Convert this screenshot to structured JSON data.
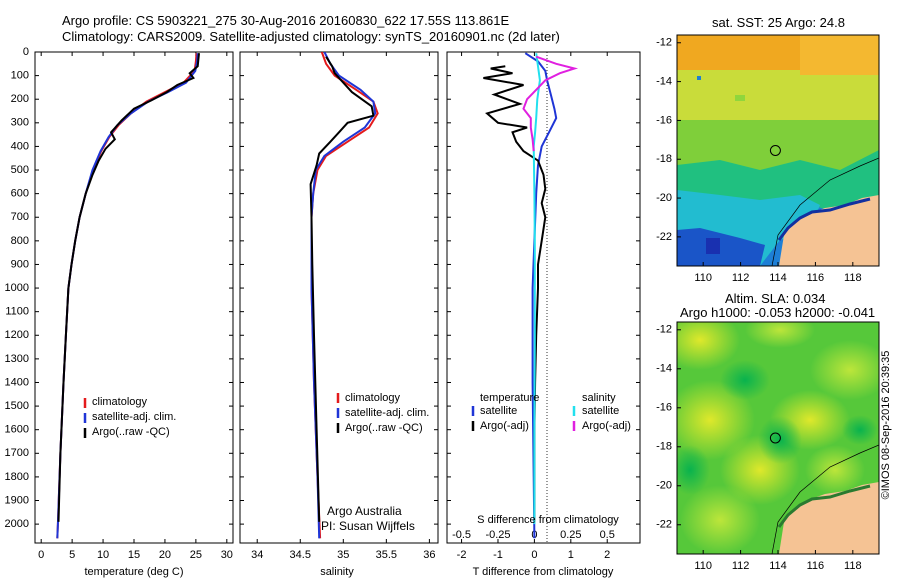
{
  "header": {
    "line1": "Argo profile: CS 5903221_275 30-Aug-2016 20160830_622 17.55S 113.861E",
    "line2": "Climatology: CARS2009. Satellite-adjusted climatology: synTS_20160901.nc (2d later)"
  },
  "watermark": "©IMOS 08-Sep-2016 20:39:35",
  "colors": {
    "climatology": "#e41a1c",
    "satellite": "#1f35d6",
    "argo": "#000000",
    "satellite_s": "#22e0ee",
    "argo_s": "#e020e0"
  },
  "chart_data": [
    {
      "type": "line",
      "xlabel": "temperature (deg C)",
      "ylabel": "",
      "xlim": [
        -1,
        31
      ],
      "ylim": [
        2080,
        0
      ],
      "xticks": [
        "0",
        "5",
        "10",
        "15",
        "20",
        "25",
        "30"
      ],
      "yticks": [
        "0",
        "100",
        "200",
        "300",
        "400",
        "500",
        "600",
        "700",
        "800",
        "900",
        "1000",
        "1100",
        "1200",
        "1300",
        "1400",
        "1500",
        "1600",
        "1700",
        "1800",
        "1900",
        "2000"
      ],
      "legend": [
        "climatology",
        "satellite-adj. clim.",
        "Argo(..raw -QC)"
      ],
      "series": [
        {
          "name": "climatology",
          "color": "#e41a1c",
          "points": [
            [
              25.1,
              5
            ],
            [
              25,
              40
            ],
            [
              24.8,
              80
            ],
            [
              23,
              130
            ],
            [
              20,
              170
            ],
            [
              17,
              210
            ],
            [
              14.5,
              260
            ],
            [
              12.5,
              310
            ],
            [
              11,
              360
            ],
            [
              9.7,
              420
            ],
            [
              8.4,
              500
            ],
            [
              7.2,
              600
            ],
            [
              6.2,
              700
            ],
            [
              5.5,
              800
            ],
            [
              4.9,
              900
            ],
            [
              4.4,
              1000
            ],
            [
              4,
              1200
            ],
            [
              3.6,
              1400
            ],
            [
              3.1,
              1700
            ],
            [
              2.7,
              2000
            ],
            [
              2.6,
              2060
            ]
          ]
        },
        {
          "name": "satellite-adj. clim.",
          "color": "#1f35d6",
          "points": [
            [
              25.3,
              5
            ],
            [
              25.2,
              40
            ],
            [
              24.9,
              80
            ],
            [
              23.4,
              130
            ],
            [
              20.5,
              170
            ],
            [
              17.3,
              210
            ],
            [
              14.5,
              260
            ],
            [
              12.3,
              310
            ],
            [
              10.9,
              360
            ],
            [
              9.6,
              420
            ],
            [
              8.3,
              500
            ],
            [
              7.2,
              600
            ],
            [
              6.2,
              700
            ],
            [
              5.5,
              800
            ],
            [
              4.9,
              900
            ],
            [
              4.4,
              1000
            ],
            [
              4,
              1200
            ],
            [
              3.6,
              1400
            ],
            [
              3.1,
              1700
            ],
            [
              2.7,
              2000
            ],
            [
              2.6,
              2060
            ]
          ]
        },
        {
          "name": "Argo(..raw -QC)",
          "color": "#000000",
          "points": [
            [
              25.5,
              5
            ],
            [
              25.3,
              60
            ],
            [
              24,
              90
            ],
            [
              24.6,
              110
            ],
            [
              22,
              140
            ],
            [
              20.3,
              170
            ],
            [
              17.8,
              205
            ],
            [
              15,
              240
            ],
            [
              13,
              290
            ],
            [
              11.3,
              340
            ],
            [
              11.9,
              370
            ],
            [
              10.4,
              410
            ],
            [
              9.3,
              460
            ],
            [
              8.3,
              520
            ],
            [
              7.2,
              600
            ],
            [
              6.2,
              700
            ],
            [
              5.5,
              800
            ],
            [
              4.9,
              900
            ],
            [
              4.4,
              1000
            ],
            [
              4,
              1200
            ],
            [
              3.6,
              1400
            ],
            [
              3.1,
              1700
            ],
            [
              2.8,
              1990
            ]
          ]
        }
      ]
    },
    {
      "type": "line",
      "xlabel": "salinity",
      "xlim": [
        33.8,
        36.1
      ],
      "ylim": [
        2080,
        0
      ],
      "xticks": [
        "34",
        "34.5",
        "35",
        "35.5",
        "36"
      ],
      "legend": [
        "climatology",
        "satellite-adj. clim.",
        "Argo(..raw -QC)"
      ],
      "annotation": [
        "Argo Australia",
        "PI: Susan Wijffels"
      ],
      "series": [
        {
          "name": "climatology",
          "color": "#e41a1c",
          "points": [
            [
              34.75,
              0
            ],
            [
              34.8,
              50
            ],
            [
              34.9,
              100
            ],
            [
              35.15,
              160
            ],
            [
              35.35,
              210
            ],
            [
              35.4,
              260
            ],
            [
              35.3,
              320
            ],
            [
              35.05,
              380
            ],
            [
              34.8,
              440
            ],
            [
              34.7,
              500
            ],
            [
              34.65,
              600
            ],
            [
              34.63,
              700
            ],
            [
              34.63,
              1000
            ],
            [
              34.66,
              1400
            ],
            [
              34.7,
              1800
            ],
            [
              34.73,
              2060
            ]
          ]
        },
        {
          "name": "satellite-adj. clim.",
          "color": "#1f35d6",
          "points": [
            [
              34.78,
              0
            ],
            [
              34.85,
              50
            ],
            [
              34.95,
              100
            ],
            [
              35.2,
              160
            ],
            [
              35.35,
              210
            ],
            [
              35.37,
              260
            ],
            [
              35.25,
              320
            ],
            [
              35.0,
              380
            ],
            [
              34.78,
              440
            ],
            [
              34.68,
              500
            ],
            [
              34.65,
              600
            ],
            [
              34.63,
              700
            ],
            [
              34.63,
              1000
            ],
            [
              34.66,
              1400
            ],
            [
              34.7,
              1800
            ],
            [
              34.72,
              2060
            ]
          ]
        },
        {
          "name": "Argo(..raw -QC)",
          "color": "#000000",
          "points": [
            [
              34.8,
              20
            ],
            [
              34.87,
              60
            ],
            [
              34.9,
              90
            ],
            [
              35.1,
              170
            ],
            [
              35.33,
              230
            ],
            [
              35.35,
              270
            ],
            [
              35.05,
              300
            ],
            [
              34.95,
              340
            ],
            [
              34.85,
              380
            ],
            [
              34.72,
              430
            ],
            [
              34.69,
              480
            ],
            [
              34.62,
              560
            ],
            [
              34.63,
              700
            ],
            [
              34.64,
              900
            ],
            [
              34.66,
              1200
            ],
            [
              34.69,
              1600
            ],
            [
              34.72,
              1990
            ]
          ]
        }
      ]
    },
    {
      "type": "line",
      "xlabel": "T difference from climatology",
      "x2label": "S difference from climatology",
      "xlim": [
        -2.4,
        2.9
      ],
      "x2lim": [
        -0.6,
        0.725
      ],
      "ylim": [
        2080,
        0
      ],
      "xticks": [
        "-2",
        "-1",
        "0",
        "1",
        "2"
      ],
      "x2ticks": [
        "-0.5",
        "-0.25",
        "0",
        "0.25",
        "0.5"
      ],
      "legend": [
        "temperature",
        "satellite",
        "Argo(-adj)",
        "salinity",
        "satellite",
        "Argo(-adj)"
      ],
      "series": [
        {
          "name": "satellite",
          "color": "#1f35d6",
          "points": [
            [
              -0.25,
              5
            ],
            [
              0.1,
              40
            ],
            [
              0.3,
              80
            ],
            [
              0.35,
              120
            ],
            [
              0.45,
              180
            ],
            [
              0.55,
              240
            ],
            [
              0.6,
              280
            ],
            [
              0.4,
              340
            ],
            [
              0.2,
              400
            ],
            [
              0.1,
              480
            ],
            [
              0.05,
              600
            ],
            [
              0,
              800
            ],
            [
              -0.05,
              1000
            ],
            [
              -0.05,
              1400
            ],
            [
              -0.02,
              1800
            ],
            [
              0,
              2060
            ]
          ]
        },
        {
          "name": "Argo(-adj)",
          "color": "#000000",
          "points": [
            [
              -0.8,
              60
            ],
            [
              -1.2,
              70
            ],
            [
              -0.6,
              90
            ],
            [
              -1.4,
              110
            ],
            [
              -0.3,
              140
            ],
            [
              -1.1,
              180
            ],
            [
              -0.4,
              220
            ],
            [
              -1.3,
              260
            ],
            [
              -1.0,
              300
            ],
            [
              -0.2,
              320
            ],
            [
              -0.6,
              340
            ],
            [
              -0.5,
              380
            ],
            [
              -0.3,
              420
            ],
            [
              0.1,
              460
            ],
            [
              0.25,
              520
            ],
            [
              0.3,
              580
            ],
            [
              0.2,
              640
            ],
            [
              0.3,
              700
            ],
            [
              0.2,
              800
            ],
            [
              0.1,
              900
            ],
            [
              0.1,
              1000
            ],
            [
              0.05,
              1200
            ],
            [
              0.02,
              1400
            ],
            [
              0,
              1600
            ],
            [
              0,
              1800
            ],
            [
              0,
              1990
            ]
          ]
        },
        {
          "name": "salinity satellite",
          "color": "#22e0ee",
          "points": [
            [
              0.05,
              5
            ],
            [
              0.1,
              60
            ],
            [
              0.15,
              120
            ],
            [
              0.08,
              200
            ],
            [
              0.05,
              280
            ],
            [
              0.02,
              340
            ],
            [
              -0.02,
              400
            ],
            [
              0,
              600
            ],
            [
              0.01,
              800
            ],
            [
              0.01,
              1200
            ],
            [
              0,
              1600
            ],
            [
              0,
              2000
            ]
          ]
        },
        {
          "name": "salinity Argo(-adj)",
          "color": "#e020e0",
          "points": [
            [
              0.05,
              20
            ],
            [
              0.6,
              50
            ],
            [
              1.1,
              70
            ],
            [
              0.7,
              90
            ],
            [
              0.3,
              120
            ],
            [
              0.05,
              160
            ],
            [
              -0.2,
              200
            ],
            [
              -0.3,
              240
            ],
            [
              -0.1,
              280
            ],
            [
              -0.1,
              320
            ],
            [
              -0.05,
              370
            ],
            [
              -0.02,
              420
            ]
          ]
        }
      ]
    },
    {
      "type": "heatmap",
      "title": "sat. SST: 25 Argo: 24.8",
      "xticks": [
        "110",
        "112",
        "114",
        "116",
        "118"
      ],
      "yticks": [
        "-12",
        "-14",
        "-16",
        "-18",
        "-20",
        "-22"
      ],
      "xlim": [
        108.6,
        119.4
      ],
      "ylim": [
        -23.5,
        -11.6
      ],
      "marker": {
        "lon": 113.861,
        "lat": -17.55
      }
    },
    {
      "type": "heatmap",
      "title": "Altim. SLA: 0.034",
      "subtitle": "Argo h1000: -0.053 h2000: -0.041",
      "xticks": [
        "110",
        "112",
        "114",
        "116",
        "118"
      ],
      "yticks": [
        "-12",
        "-14",
        "-16",
        "-18",
        "-20",
        "-22"
      ],
      "xlim": [
        108.6,
        119.4
      ],
      "ylim": [
        -23.5,
        -11.6
      ],
      "marker": {
        "lon": 113.861,
        "lat": -17.55
      }
    }
  ]
}
